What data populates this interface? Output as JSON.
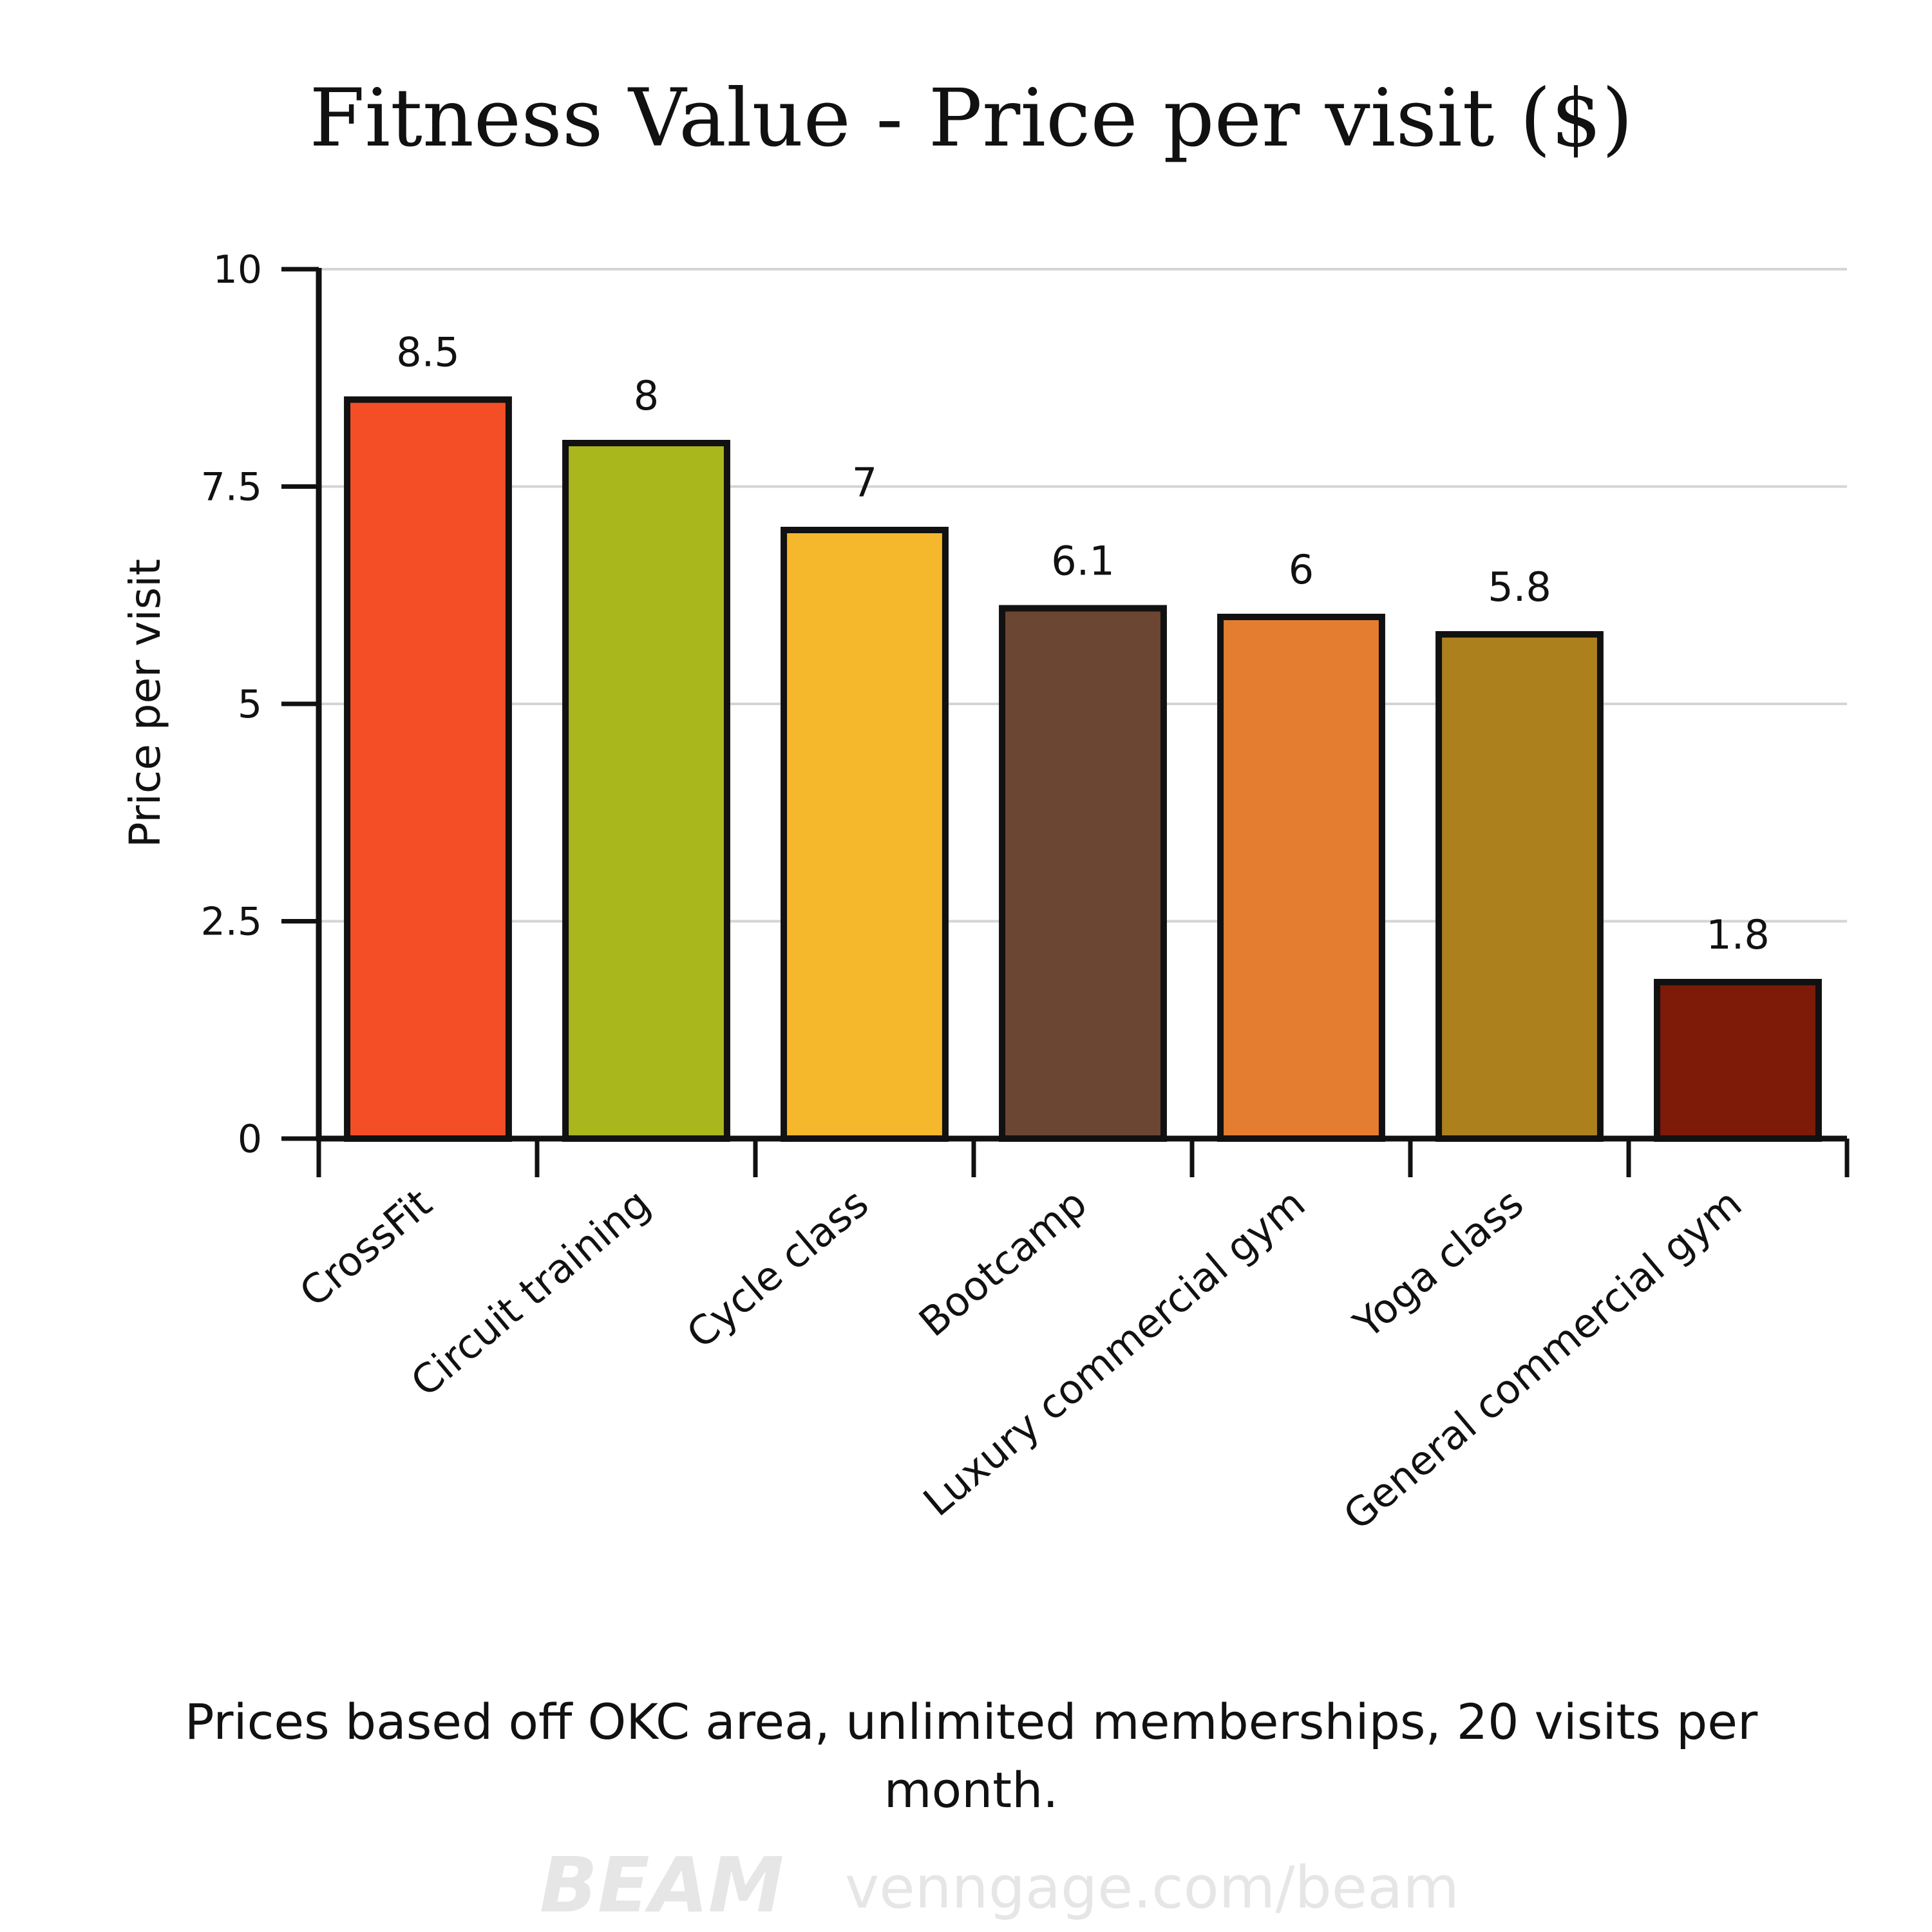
{
  "chart_data": {
    "type": "bar",
    "title": "Fitness Value - Price per visit ($)",
    "xlabel": "",
    "ylabel": "Price per visit",
    "categories": [
      "CrossFit",
      "Circuit training",
      "Cycle class",
      "Bootcamp",
      "Luxury commercial gym",
      "Yoga class",
      "General commercial gym"
    ],
    "values": [
      8.5,
      8,
      7,
      6.1,
      6,
      5.8,
      1.8
    ],
    "value_labels": [
      "8.5",
      "8",
      "7",
      "6.1",
      "6",
      "5.8",
      "1.8"
    ],
    "colors": [
      "#f44e26",
      "#a9b71d",
      "#f5b72c",
      "#6b4632",
      "#e47d30",
      "#ab801d",
      "#7e1a08"
    ],
    "bar_outline_color": "#111111",
    "ylim": [
      0,
      10
    ],
    "yticks": [
      0,
      2.5,
      5,
      7.5,
      10
    ],
    "ytick_labels": [
      "0",
      "2.5",
      "5",
      "7.5",
      "10"
    ],
    "grid": true,
    "grid_color": "#d4d4d4",
    "legend": "none"
  },
  "caption": {
    "line1": "Prices based off OKC area, unlimited memberships, 20 visits per",
    "line2": "month."
  },
  "watermark": {
    "logo": "BEAM",
    "url": "venngage.com/beam"
  }
}
